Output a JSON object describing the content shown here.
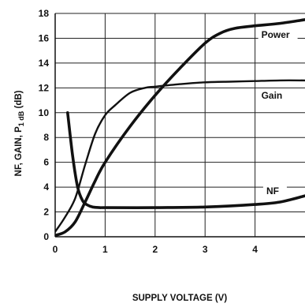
{
  "chart_data": {
    "type": "line",
    "title": "",
    "xlabel": "SUPPLY VOLTAGE (V)",
    "ylabel": "NF, GAIN, P1dB (dB)",
    "ylabel_parts": {
      "main": "NF, GAIN,  P",
      "sub": "1 dB",
      "tail": " (dB)"
    },
    "xlim": [
      0,
      5
    ],
    "ylim": [
      0,
      18
    ],
    "x_ticks": [
      0,
      1,
      2,
      3,
      4
    ],
    "y_ticks": [
      0,
      2,
      4,
      6,
      8,
      10,
      12,
      14,
      16,
      18
    ],
    "grid": true,
    "series": [
      {
        "name": "Power",
        "x": [
          0.0,
          0.2,
          0.4,
          0.6,
          0.8,
          1.0,
          1.5,
          2.0,
          2.5,
          3.0,
          3.3,
          3.6,
          4.0,
          4.5,
          5.0
        ],
        "y": [
          0.1,
          0.4,
          1.2,
          2.8,
          4.5,
          6.0,
          8.9,
          11.4,
          13.6,
          15.6,
          16.4,
          16.8,
          17.0,
          17.2,
          17.5
        ]
      },
      {
        "name": "Gain",
        "x": [
          0.0,
          0.2,
          0.4,
          0.6,
          0.8,
          1.0,
          1.2,
          1.5,
          1.8,
          2.0,
          2.5,
          3.0,
          3.5,
          4.0,
          4.5,
          5.0
        ],
        "y": [
          0.4,
          1.6,
          3.1,
          5.8,
          8.3,
          9.8,
          10.6,
          11.6,
          12.0,
          12.1,
          12.3,
          12.45,
          12.5,
          12.55,
          12.6,
          12.6
        ]
      },
      {
        "name": "NF",
        "x": [
          0.25,
          0.35,
          0.45,
          0.55,
          0.65,
          0.75,
          0.9,
          1.0,
          2.0,
          3.0,
          4.0,
          4.5,
          5.0
        ],
        "y": [
          10.0,
          6.5,
          4.0,
          2.9,
          2.55,
          2.4,
          2.35,
          2.35,
          2.35,
          2.4,
          2.6,
          2.8,
          3.3
        ]
      }
    ],
    "labels": {
      "power": "Power",
      "gain": "Gain",
      "nf": "NF"
    }
  }
}
